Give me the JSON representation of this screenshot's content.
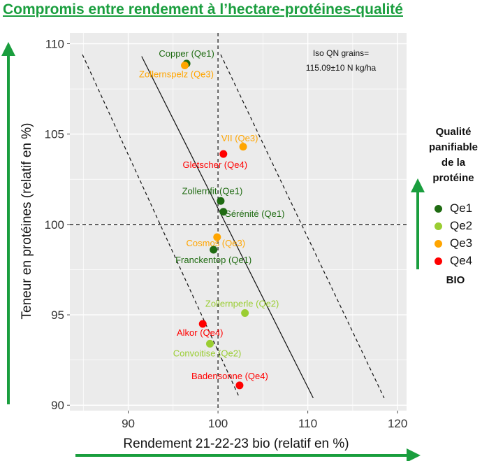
{
  "title": "Compromis entre rendement à l’hectare-protéines-qualité",
  "colors": {
    "Qe1": "#1f6b12",
    "Qe2": "#9acd32",
    "Qe3": "#ffa500",
    "Qe4": "#ff0000",
    "accent": "#1a9e3e"
  },
  "legend": {
    "title_lines": [
      "Qualité",
      "panifiable",
      "de la",
      "protéine"
    ],
    "items": [
      {
        "key": "Qe1",
        "label": "Qe1"
      },
      {
        "key": "Qe2",
        "label": "Qe2"
      },
      {
        "key": "Qe3",
        "label": "Qe3"
      },
      {
        "key": "Qe4",
        "label": "Qe4"
      }
    ],
    "footer": "BIO"
  },
  "chart_data": {
    "type": "scatter",
    "xlabel": "Rendement 21-22-23 bio (relatif en %)",
    "ylabel": "Teneur en protéines (relatif en %)",
    "xlim": [
      83.5,
      121
    ],
    "ylim": [
      89.7,
      110.6
    ],
    "xticks": [
      90,
      100,
      110,
      120
    ],
    "yticks": [
      90,
      95,
      100,
      105,
      110
    ],
    "annotation": [
      "Iso QN grains=",
      "115.09±10 N kg/ha"
    ],
    "reference_lines": {
      "vertical_x": 100,
      "horizontal_y": 100
    },
    "iso_lines": [
      {
        "style": "solid",
        "from": [
          91.5,
          109.3
        ],
        "to": [
          110.6,
          90.4
        ]
      },
      {
        "style": "dashed",
        "from": [
          84.9,
          109.4
        ],
        "to": [
          102.4,
          90.4
        ]
      },
      {
        "style": "dashed",
        "from": [
          100.3,
          109.4
        ],
        "to": [
          118.5,
          90.4
        ]
      }
    ],
    "points": [
      {
        "label": "Copper (Qe1)",
        "x": 96.5,
        "y": 108.9,
        "quality": "Qe1"
      },
      {
        "label": "Zollernspelz (Qe3)",
        "x": 96.3,
        "y": 108.8,
        "quality": "Qe3"
      },
      {
        "label": "VII (Qe3)",
        "x": 102.8,
        "y": 104.3,
        "quality": "Qe3"
      },
      {
        "label": "Gletscher (Qe4)",
        "x": 100.6,
        "y": 103.9,
        "quality": "Qe4"
      },
      {
        "label": "Zollernfit (Qe1)",
        "x": 100.3,
        "y": 101.3,
        "quality": "Qe1"
      },
      {
        "label": "Sérénité (Qe1)",
        "x": 100.6,
        "y": 100.7,
        "quality": "Qe1"
      },
      {
        "label": "Cosmos (Qe3)",
        "x": 99.9,
        "y": 99.3,
        "quality": "Qe3"
      },
      {
        "label": "Franckentop (Qe1)",
        "x": 99.5,
        "y": 98.6,
        "quality": "Qe1"
      },
      {
        "label": "Zollernperle (Qe2)",
        "x": 103.0,
        "y": 95.1,
        "quality": "Qe2"
      },
      {
        "label": "Alkor (Qe4)",
        "x": 98.3,
        "y": 94.5,
        "quality": "Qe4"
      },
      {
        "label": "Convoitise (Qe2)",
        "x": 99.1,
        "y": 93.4,
        "quality": "Qe2"
      },
      {
        "label": "Badensonne (Qe4)",
        "x": 102.4,
        "y": 91.1,
        "quality": "Qe4"
      }
    ]
  }
}
